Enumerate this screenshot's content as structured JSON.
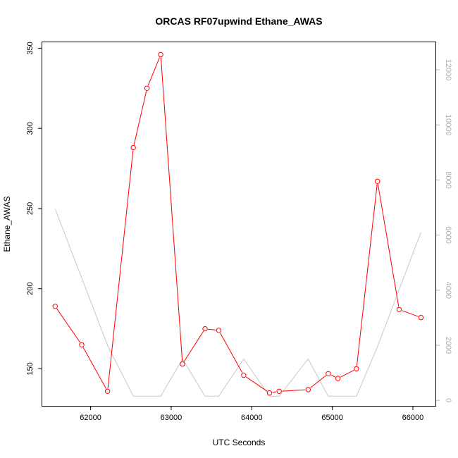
{
  "chart_data": {
    "type": "line",
    "title": "ORCAS RF07upwind Ethane_AWAS",
    "xlabel": "UTC Seconds",
    "ylabel": "Ethane_AWAS",
    "y2label": "",
    "xlim": [
      61400,
      66280
    ],
    "ylim": [
      126.9,
      353.7
    ],
    "y2lim": [
      -200,
      13000
    ],
    "x_ticks": [
      62000,
      63000,
      64000,
      65000,
      66000
    ],
    "y_ticks": [
      150,
      200,
      250,
      300,
      350
    ],
    "y2_ticks": [
      0,
      2000,
      4000,
      6000,
      8000,
      10000,
      12000
    ],
    "legend": "none",
    "grid": false,
    "colors": {
      "primary": "#ff0000",
      "secondary": "#c8c8c8",
      "y2_tick_text": "#b0b0b0"
    },
    "series": [
      {
        "axis": "left",
        "style": "line-with-open-circles",
        "x": [
          61560,
          61890,
          62210,
          62530,
          62700,
          62870,
          63140,
          63420,
          63590,
          63900,
          64220,
          64340,
          64700,
          64950,
          65070,
          65300,
          65560,
          65830,
          66100
        ],
        "values": [
          189,
          165,
          136,
          288,
          325,
          346,
          153,
          175,
          174,
          146,
          135,
          136,
          137,
          147,
          144,
          150,
          267,
          187,
          182
        ]
      },
      {
        "axis": "right",
        "style": "line",
        "x": [
          61560,
          62210,
          62530,
          62870,
          63140,
          63420,
          63590,
          63900,
          64220,
          64340,
          64700,
          64950,
          65070,
          65300,
          65560,
          66100
        ],
        "values": [
          6950,
          2000,
          150,
          150,
          1500,
          150,
          150,
          1500,
          150,
          150,
          1500,
          150,
          150,
          150,
          1950,
          6100
        ]
      }
    ]
  }
}
